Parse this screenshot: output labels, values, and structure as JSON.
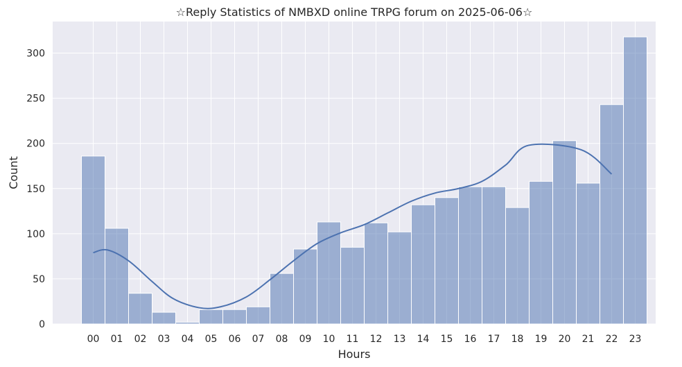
{
  "chart_data": {
    "type": "bar",
    "title": "☆Reply Statistics of NMBXD online TRPG forum on 2025-06-06☆",
    "xlabel": "Hours",
    "ylabel": "Count",
    "categories": [
      "00",
      "01",
      "02",
      "03",
      "04",
      "05",
      "06",
      "07",
      "08",
      "09",
      "10",
      "11",
      "12",
      "13",
      "14",
      "15",
      "16",
      "17",
      "18",
      "19",
      "20",
      "21",
      "22",
      "23"
    ],
    "values": [
      186,
      106,
      34,
      13,
      2,
      16,
      16,
      19,
      56,
      83,
      113,
      85,
      112,
      102,
      132,
      140,
      152,
      152,
      129,
      158,
      203,
      156,
      243,
      318
    ],
    "kde": [
      79,
      82,
      70,
      47,
      28,
      18,
      19,
      30,
      49,
      70,
      89,
      101,
      110,
      123,
      136,
      145,
      150,
      158,
      176,
      198,
      193,
      166
    ],
    "kde_x": [
      0,
      0.6,
      1.5,
      2.5,
      3.4,
      4.5,
      5.4,
      6.5,
      7.5,
      8.5,
      9.5,
      10.5,
      11.5,
      12.5,
      13.5,
      14.5,
      15.5,
      16.5,
      17.5,
      18.5,
      20.7,
      22.0
    ],
    "ylim": [
      0,
      335
    ],
    "yticks": [
      0,
      50,
      100,
      150,
      200,
      250,
      300
    ],
    "grid": true,
    "bar_color": "#4c72b0",
    "background_color": "#eaeaf2",
    "grid_color": "#ffffff"
  }
}
